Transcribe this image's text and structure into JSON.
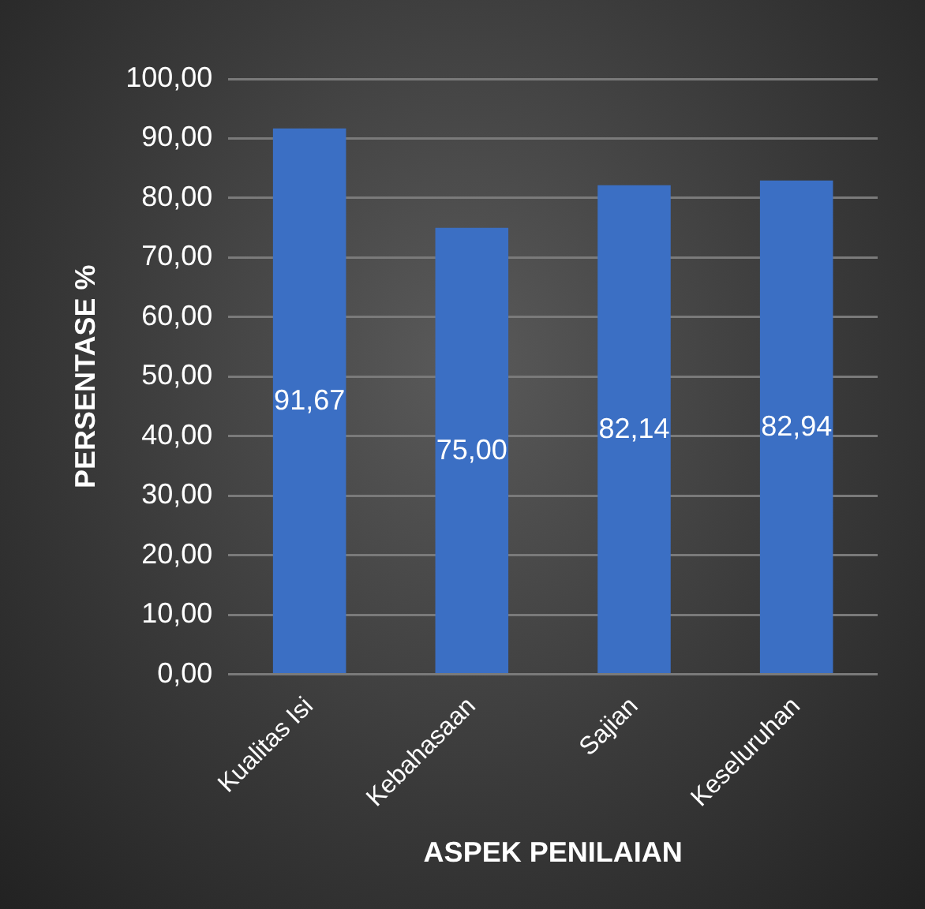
{
  "chart_data": {
    "type": "bar",
    "xlabel": "ASPEK PENILAIAN",
    "ylabel": "PERSENTASE %",
    "categories": [
      "Kualitas Isi",
      "Kebahasaan",
      "Sajian",
      "Keseluruhan"
    ],
    "values": [
      91.67,
      75.0,
      82.14,
      82.94
    ],
    "value_labels": [
      "91,67",
      "75,00",
      "82,14",
      "82,94"
    ],
    "color": "#3b6fc4",
    "ylim": [
      0,
      100
    ],
    "yticks": [
      {
        "value": 0,
        "label": "0,00"
      },
      {
        "value": 10,
        "label": "10,00"
      },
      {
        "value": 20,
        "label": "20,00"
      },
      {
        "value": 30,
        "label": "30,00"
      },
      {
        "value": 40,
        "label": "40,00"
      },
      {
        "value": 50,
        "label": "50,00"
      },
      {
        "value": 60,
        "label": "60,00"
      },
      {
        "value": 70,
        "label": "70,00"
      },
      {
        "value": 80,
        "label": "80,00"
      },
      {
        "value": 90,
        "label": "90,00"
      },
      {
        "value": 100,
        "label": "100,00"
      }
    ],
    "grid": "y"
  }
}
